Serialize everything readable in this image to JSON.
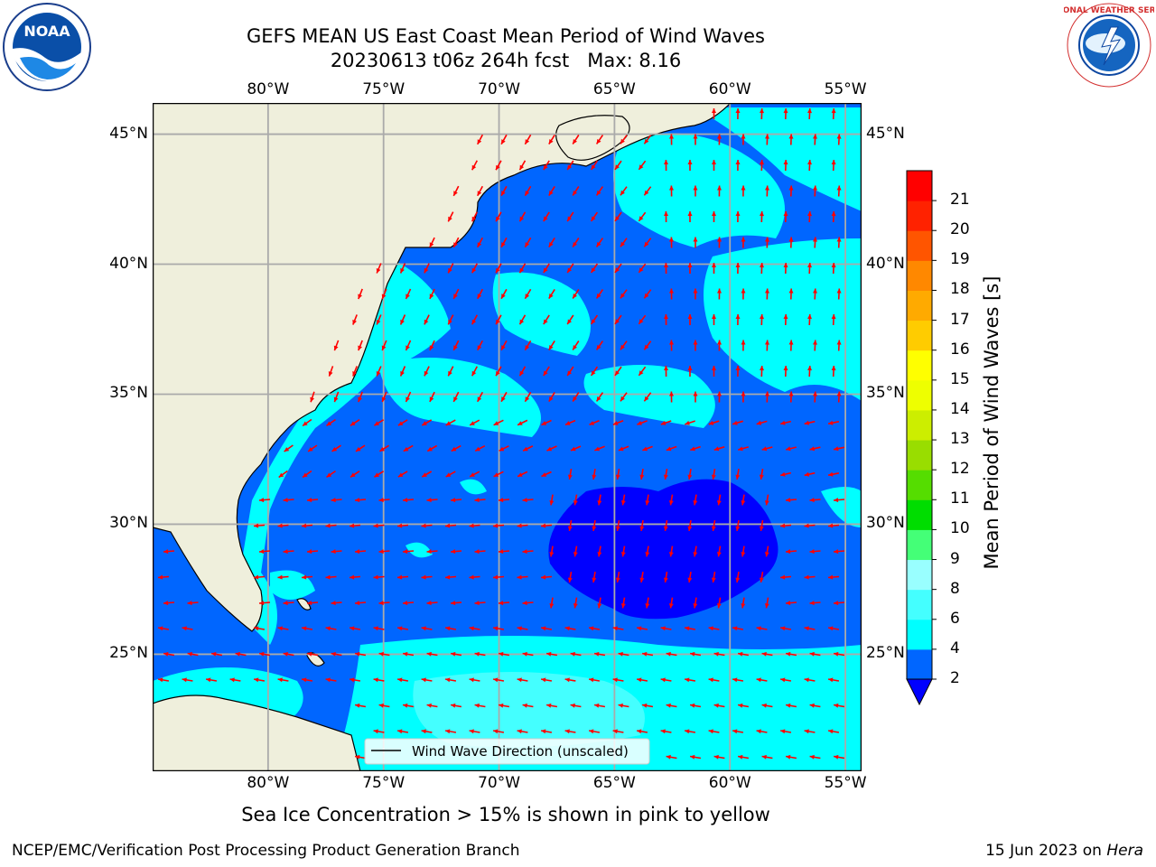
{
  "title": {
    "line1": "GEFS MEAN US East Coast Mean Period of Wind Waves",
    "line2": "20230613 t06z 264h fcst",
    "max_label": "Max: 8.16"
  },
  "logos": {
    "left": {
      "text": "NOAA",
      "icon": "noaa-logo"
    },
    "right": {
      "text": "NATIONAL WEATHER SERVICE",
      "icon": "nws-logo"
    }
  },
  "map": {
    "lon_ticks_top": [
      "80°W",
      "75°W",
      "70°W",
      "65°W",
      "60°W",
      "55°W"
    ],
    "lon_ticks_bottom": [
      "80°W",
      "75°W",
      "70°W",
      "65°W",
      "60°W",
      "55°W"
    ],
    "lat_ticks_left": [
      "45°N",
      "40°N",
      "35°N",
      "30°N",
      "25°N"
    ],
    "lat_ticks_right": [
      "45°N",
      "40°N",
      "35°N",
      "30°N",
      "25°N"
    ],
    "lon_values": [
      -80,
      -75,
      -70,
      -65,
      -60,
      -55
    ],
    "lat_values": [
      45,
      40,
      35,
      30,
      25
    ],
    "extent": {
      "lon": [
        -85,
        -54.3
      ],
      "lat": [
        20.5,
        46.2
      ]
    },
    "land_color": "#efefdc",
    "arrow_color": "#ff0000",
    "legend_label": "Wind Wave Direction (unscaled)"
  },
  "colorbar": {
    "label": "Mean Period of Wind Waves [s]",
    "tick_labels": [
      "2",
      "4",
      "6",
      "8",
      "9",
      "10",
      "11",
      "12",
      "13",
      "14",
      "15",
      "16",
      "17",
      "18",
      "19",
      "20",
      "21"
    ],
    "colors": [
      "#0066ff",
      "#00ffff",
      "#44ffff",
      "#99ffff",
      "#44ff77",
      "#00dd00",
      "#55dd00",
      "#99dd00",
      "#ccee00",
      "#eeff00",
      "#ffff00",
      "#ffcc00",
      "#ffaa00",
      "#ff8800",
      "#ff5500",
      "#ff2200",
      "#ff0000"
    ],
    "under_color": "#0000ff"
  },
  "note": "Sea Ice Concentration > 15% is shown in pink to yellow",
  "footer": {
    "left": "NCEP/EMC/Verification Post Processing Product Generation Branch",
    "date": "15 Jun 2023 on ",
    "machine": "Hera"
  }
}
